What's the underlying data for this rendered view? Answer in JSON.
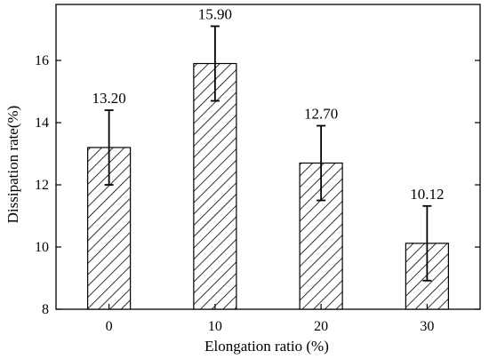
{
  "chart_data": {
    "type": "bar",
    "title": "",
    "xlabel": "Elongation ratio (%)",
    "ylabel": "Dissipation rate(%)",
    "categories": [
      "0",
      "10",
      "20",
      "30"
    ],
    "values": [
      13.2,
      15.9,
      12.7,
      10.12
    ],
    "value_labels": [
      "13.20",
      "15.90",
      "12.70",
      "10.12"
    ],
    "error": [
      1.2,
      1.2,
      1.2,
      1.2
    ],
    "ylim": [
      8,
      17.8
    ],
    "yticks": [
      8,
      10,
      12,
      14,
      16
    ],
    "ytick_labels": [
      "8",
      "10",
      "12",
      "14",
      "16"
    ],
    "grid": false,
    "bar_fill": "diagonal-hatch",
    "colors": {
      "bar_edge": "#000000",
      "hatch": "#000000",
      "background": "#ffffff"
    }
  }
}
